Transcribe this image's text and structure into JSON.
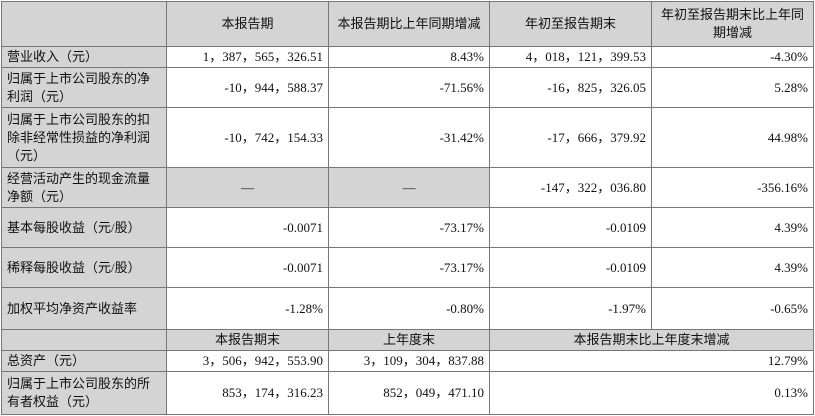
{
  "table": {
    "header": {
      "columns": [
        "本报告期",
        "本报告期比上年同期增减",
        "年初至报告期末",
        "年初至报告期末比上年同期增减"
      ]
    },
    "rows": [
      [
        "营业收入（元）",
        "1，387，565，326.51",
        "8.43%",
        "4，018，121，399.53",
        "-4.30%"
      ],
      [
        "归属于上市公司股东的净利润（元）",
        "-10，944，588.37",
        "-71.56%",
        "-16，825，326.05",
        "5.28%"
      ],
      [
        "归属于上市公司股东的扣除非经常性损益的净利润（元）",
        "-10，742，154.33",
        "-31.42%",
        "-17，666，379.92",
        "44.98%"
      ],
      [
        "经营活动产生的现金流量净额（元）",
        "—",
        "—",
        "-147，322，036.80",
        "-356.16%"
      ],
      [
        "基本每股收益（元/股）",
        "-0.0071",
        "-73.17%",
        "-0.0109",
        "4.39%"
      ],
      [
        "稀释每股收益（元/股）",
        "-0.0071",
        "-73.17%",
        "-0.0109",
        "4.39%"
      ],
      [
        "加权平均净资产收益率",
        "-1.28%",
        "-0.80%",
        "-1.97%",
        "-0.65%"
      ]
    ],
    "subheader": {
      "columns": [
        "本报告期末",
        "上年度末",
        "本报告期末比上年度末增减"
      ]
    },
    "balance_rows": [
      [
        "总资产（元）",
        "3，506，942，553.90",
        "3，109，304，837.88",
        "12.79%"
      ],
      [
        "归属于上市公司股东的所有者权益（元）",
        "853，174，316.23",
        "852，049，471.10",
        "0.13%"
      ]
    ]
  }
}
